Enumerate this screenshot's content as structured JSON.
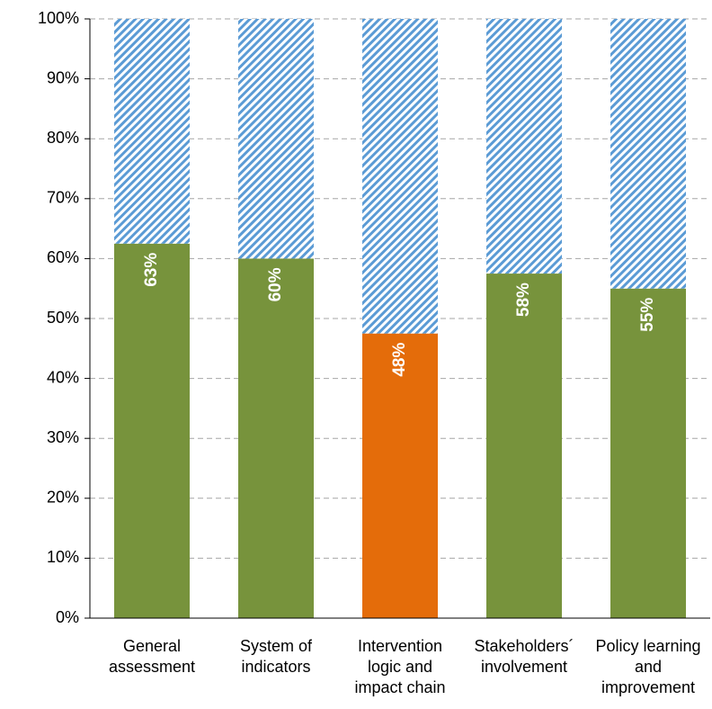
{
  "chart_data": {
    "type": "stacked_bar",
    "categories": [
      "General assessment",
      "System of indicators",
      "Intervention logic and impact chain",
      "Stakeholders´ involvement",
      "Policy learning and improvement"
    ],
    "series": [
      {
        "colors": [
          "#77933c",
          "#77933c",
          "#e46c0a",
          "#77933c",
          "#77933c"
        ],
        "values": [
          62.5,
          60,
          47.5,
          57.5,
          55
        ],
        "value_labels": [
          "63%",
          "60%",
          "48%",
          "58%",
          "55%"
        ]
      },
      {
        "color": "#5b9bd5",
        "pattern": "diagonal-hatch",
        "values": [
          37.5,
          40,
          52.5,
          42.5,
          45
        ]
      }
    ],
    "ylim": [
      0,
      100
    ],
    "yticks": [
      {
        "value": 0,
        "label": "0%"
      },
      {
        "value": 10,
        "label": "10%"
      },
      {
        "value": 20,
        "label": "20%"
      },
      {
        "value": 30,
        "label": "30%"
      },
      {
        "value": 40,
        "label": "40%"
      },
      {
        "value": 50,
        "label": "50%"
      },
      {
        "value": 60,
        "label": "60%"
      },
      {
        "value": 70,
        "label": "70%"
      },
      {
        "value": 80,
        "label": "80%"
      },
      {
        "value": 90,
        "label": "90%"
      },
      {
        "value": 100,
        "label": "100%"
      }
    ],
    "grid": true
  }
}
